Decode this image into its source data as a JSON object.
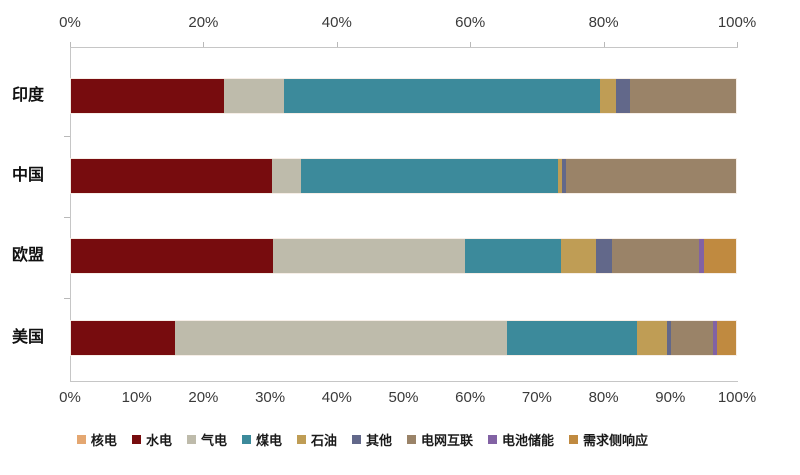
{
  "chart_data": {
    "type": "bar",
    "orientation": "horizontal",
    "stacked": true,
    "title": "",
    "xlabel": "",
    "ylabel": "",
    "xlim": [
      0,
      100
    ],
    "grid": false,
    "legend_position": "bottom",
    "categories": [
      "印度",
      "中国",
      "欧盟",
      "美国"
    ],
    "series": [
      {
        "name": "核电",
        "color": "#E4A771",
        "values": [
          0,
          0,
          0,
          0
        ]
      },
      {
        "name": "水电",
        "color": "#770C0E",
        "values": [
          23,
          30.3,
          30.4,
          15.6
        ]
      },
      {
        "name": "气电",
        "color": "#BEBBAB",
        "values": [
          9,
          4.3,
          28.8,
          50
        ]
      },
      {
        "name": "煤电",
        "color": "#3C8A9B",
        "values": [
          47.5,
          38.7,
          14.5,
          19.5
        ]
      },
      {
        "name": "石油",
        "color": "#BF9D55",
        "values": [
          2.5,
          0.5,
          5.2,
          4.5
        ]
      },
      {
        "name": "其他",
        "color": "#62688A",
        "values": [
          2,
          0.7,
          2.4,
          0.7
        ]
      },
      {
        "name": "电网互联",
        "color": "#9A8368",
        "values": [
          16,
          25.5,
          13.2,
          6.2
        ]
      },
      {
        "name": "电池储能",
        "color": "#8262A4",
        "values": [
          0,
          0,
          0.7,
          0.7
        ]
      },
      {
        "name": "需求侧响应",
        "color": "#C08A40",
        "values": [
          0,
          0,
          4.8,
          2.8
        ]
      }
    ],
    "top_axis_ticks": [
      "0%",
      "20%",
      "40%",
      "60%",
      "80%",
      "100%"
    ],
    "bottom_axis_ticks": [
      "0%",
      "10%",
      "20%",
      "30%",
      "40%",
      "50%",
      "60%",
      "70%",
      "80%",
      "90%",
      "100%"
    ]
  },
  "styles": {
    "axis_color": "#c6c6c6",
    "tick_label_color": "#3a3a3a",
    "background": "#ffffff"
  }
}
